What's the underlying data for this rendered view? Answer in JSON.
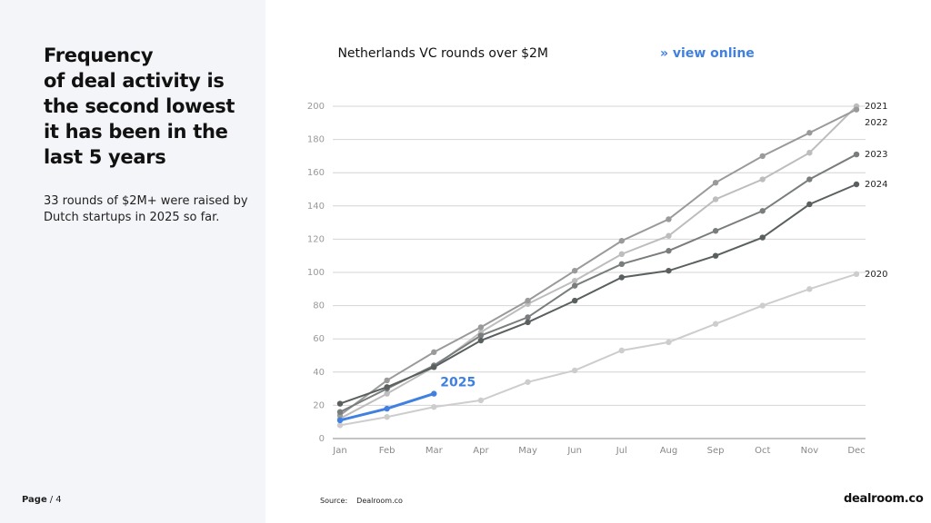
{
  "headline": [
    "Frequency",
    "of deal activity is",
    "the second lowest",
    "it has been in the",
    "last 5 years"
  ],
  "body": "33 rounds of $2M+ were raised by Dutch startups in 2025 so far.",
  "footer": {
    "page_label": "Page",
    "page_number": "/ 4",
    "source_label": "Source:",
    "source": "Dealroom.co",
    "logo": "dealroom.co"
  },
  "chart_data": {
    "type": "line",
    "title": "Netherlands VC rounds over $2M",
    "link": "» view online",
    "categories": [
      "Jan",
      "Feb",
      "Mar",
      "Apr",
      "May",
      "Jun",
      "Jul",
      "Aug",
      "Sep",
      "Oct",
      "Nov",
      "Dec"
    ],
    "ylim": [
      0,
      200
    ],
    "yticks": [
      0,
      20,
      40,
      60,
      80,
      100,
      120,
      140,
      160,
      180,
      200
    ],
    "grid": true,
    "series": [
      {
        "name": "2020",
        "color": "#cdcdcd",
        "values": [
          8,
          13,
          19,
          23,
          34,
          41,
          53,
          58,
          69,
          80,
          90,
          99
        ]
      },
      {
        "name": "2021",
        "color": "#bdbdbd",
        "values": [
          12,
          27,
          43,
          64,
          81,
          95,
          111,
          122,
          144,
          156,
          172,
          200
        ]
      },
      {
        "name": "2022",
        "color": "#9a9a9a",
        "values": [
          14,
          35,
          52,
          67,
          83,
          101,
          119,
          132,
          154,
          170,
          184,
          198
        ]
      },
      {
        "name": "2023",
        "color": "#7a7d7d",
        "values": [
          16,
          30,
          44,
          62,
          73,
          92,
          105,
          113,
          125,
          137,
          156,
          171
        ]
      },
      {
        "name": "2024",
        "color": "#5a5f5f",
        "values": [
          21,
          31,
          43,
          59,
          70,
          83,
          97,
          101,
          110,
          121,
          141,
          153
        ]
      },
      {
        "name": "2025",
        "color": "#3f80e0",
        "values": [
          11,
          18,
          27,
          null,
          null,
          null,
          null,
          null,
          null,
          null,
          null,
          null
        ]
      }
    ]
  }
}
